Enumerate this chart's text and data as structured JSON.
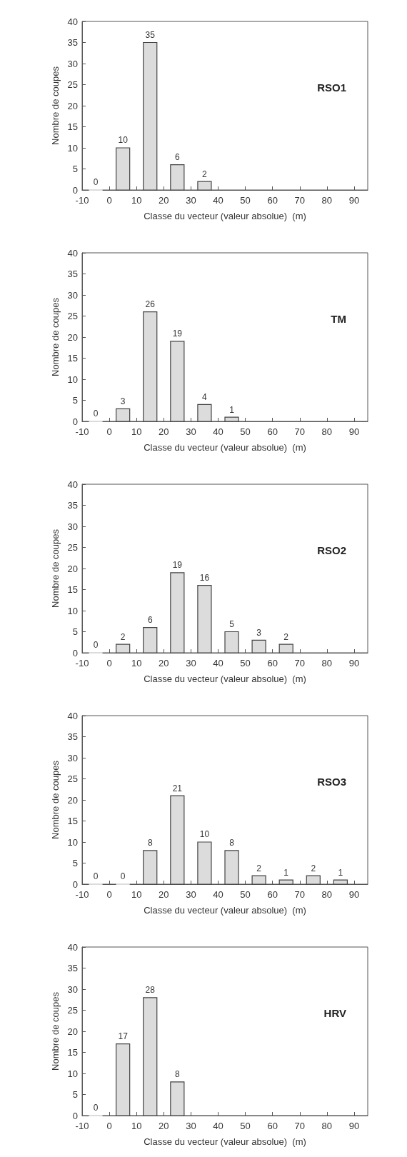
{
  "chart_data": [
    {
      "type": "histogram",
      "title": "RSO1",
      "xlabel": "Classe du vecteur (valeur absolue)  (m)",
      "ylabel": "Nombre de coupes",
      "bins": [
        -10,
        0,
        10,
        20,
        30,
        40
      ],
      "values": [
        0,
        10,
        35,
        6,
        2
      ],
      "color": "#dcdcdc",
      "xlim": [
        -10,
        95
      ],
      "xticks": [
        -10,
        0,
        10,
        20,
        30,
        40,
        50,
        60,
        70,
        80,
        90
      ],
      "ylim": [
        0,
        40
      ],
      "yticks": [
        0,
        5,
        10,
        15,
        20,
        25,
        30,
        35,
        40
      ],
      "data_labels": true
    },
    {
      "type": "histogram",
      "title": "TM",
      "xlabel": "Classe du vecteur (valeur absolue)  (m)",
      "ylabel": "Nombre de coupes",
      "bins": [
        -10,
        0,
        10,
        20,
        30,
        40,
        50
      ],
      "values": [
        0,
        3,
        26,
        19,
        4,
        1
      ],
      "color": "#dcdcdc",
      "xlim": [
        -10,
        95
      ],
      "xticks": [
        -10,
        0,
        10,
        20,
        30,
        40,
        50,
        60,
        70,
        80,
        90
      ],
      "ylim": [
        0,
        40
      ],
      "yticks": [
        0,
        5,
        10,
        15,
        20,
        25,
        30,
        35,
        40
      ],
      "data_labels": true
    },
    {
      "type": "histogram",
      "title": "RSO2",
      "xlabel": "Classe du vecteur (valeur absolue)  (m)",
      "ylabel": "Nombre de coupes",
      "bins": [
        -10,
        0,
        10,
        20,
        30,
        40,
        50,
        60,
        70
      ],
      "values": [
        0,
        2,
        6,
        19,
        16,
        5,
        3,
        2
      ],
      "color": "#dcdcdc",
      "xlim": [
        -10,
        95
      ],
      "xticks": [
        -10,
        0,
        10,
        20,
        30,
        40,
        50,
        60,
        70,
        80,
        90
      ],
      "ylim": [
        0,
        40
      ],
      "yticks": [
        0,
        5,
        10,
        15,
        20,
        25,
        30,
        35,
        40
      ],
      "data_labels": true
    },
    {
      "type": "histogram",
      "title": "RSO3",
      "xlabel": "Classe du vecteur (valeur absolue)  (m)",
      "ylabel": "Nombre de coupes",
      "bins": [
        -10,
        0,
        10,
        20,
        30,
        40,
        50,
        60,
        70,
        80,
        90
      ],
      "values": [
        0,
        0,
        8,
        21,
        10,
        8,
        2,
        1,
        2,
        1
      ],
      "color": "#dcdcdc",
      "xlim": [
        -10,
        95
      ],
      "xticks": [
        -10,
        0,
        10,
        20,
        30,
        40,
        50,
        60,
        70,
        80,
        90
      ],
      "ylim": [
        0,
        40
      ],
      "yticks": [
        0,
        5,
        10,
        15,
        20,
        25,
        30,
        35,
        40
      ],
      "data_labels": true
    },
    {
      "type": "histogram",
      "title": "HRV",
      "xlabel": "Classe du vecteur (valeur absolue)  (m)",
      "ylabel": "Nombre de coupes",
      "bins": [
        -10,
        0,
        10,
        20,
        30
      ],
      "values": [
        0,
        17,
        28,
        8
      ],
      "color": "#dcdcdc",
      "xlim": [
        -10,
        95
      ],
      "xticks": [
        -10,
        0,
        10,
        20,
        30,
        40,
        50,
        60,
        70,
        80,
        90
      ],
      "ylim": [
        0,
        40
      ],
      "yticks": [
        0,
        5,
        10,
        15,
        20,
        25,
        30,
        35,
        40
      ],
      "data_labels": true
    }
  ]
}
